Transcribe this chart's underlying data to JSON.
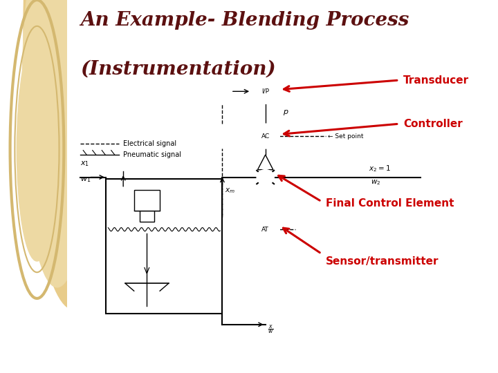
{
  "title_line1": "An Example- Blending Process",
  "title_line2": "(Instrumentation)",
  "title_color": "#5C1010",
  "title_fontsize": 20,
  "bg_left_color": "#EDD9A3",
  "annotation_color": "#CC0000",
  "annotation_fontsize": 11,
  "diagram_color": "#000000",
  "labels": {
    "transducer": "Transducer",
    "controller": "Controller",
    "final_control": "Final Control Element",
    "sensor": "Sensor/transmitter"
  },
  "legend_electrical": "Electrical signal",
  "legend_pneumatic": "Pneumatic signal"
}
